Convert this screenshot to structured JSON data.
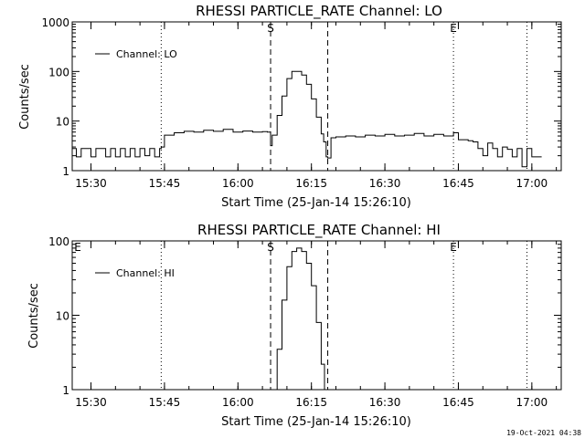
{
  "footer": {
    "timestamp": "19-Oct-2021 04:38"
  },
  "chart_data": [
    {
      "type": "line",
      "title": "RHESSI PARTICLE_RATE Channel: LO",
      "xlabel": "Start Time (25-Jan-14 15:26:10)",
      "ylabel": "Counts/sec",
      "yscale": "log",
      "ylim": [
        1,
        1000
      ],
      "xlim": [
        "15:26:10",
        "17:06:00"
      ],
      "xticks": [
        "15:30",
        "15:45",
        "16:00",
        "16:15",
        "16:30",
        "16:45",
        "17:00"
      ],
      "yticks": [
        "1",
        "10",
        "100",
        "1000"
      ],
      "legend": {
        "label": "Channel: LO",
        "placement": "top-left"
      },
      "markers": [
        {
          "label": "",
          "style": "dotted",
          "x": "15:44:20"
        },
        {
          "label": "S",
          "style": "dashed",
          "x": "16:06:40"
        },
        {
          "label": "",
          "style": "dashed",
          "x": "16:18:20"
        },
        {
          "label": "E",
          "style": "dotted",
          "x": "16:44:00"
        },
        {
          "label": "",
          "style": "dotted",
          "x": "16:59:00"
        }
      ],
      "grid": false,
      "color": "#000000",
      "series": [
        {
          "name": "Channel: LO",
          "x": [
            "15:26:10",
            "15:27:00",
            "15:28:00",
            "15:29:00",
            "15:30:00",
            "15:31:00",
            "15:32:00",
            "15:33:00",
            "15:34:00",
            "15:35:00",
            "15:36:00",
            "15:37:00",
            "15:38:00",
            "15:39:00",
            "15:40:00",
            "15:41:00",
            "15:42:00",
            "15:43:00",
            "15:44:00",
            "15:44:20",
            "15:45:00",
            "15:47:00",
            "15:49:00",
            "15:51:00",
            "15:53:00",
            "15:55:00",
            "15:57:00",
            "15:59:00",
            "16:01:00",
            "16:03:00",
            "16:05:00",
            "16:06:00",
            "16:06:40",
            "16:07:00",
            "16:08:00",
            "16:09:00",
            "16:10:00",
            "16:11:00",
            "16:12:00",
            "16:13:00",
            "16:14:00",
            "16:15:00",
            "16:16:00",
            "16:17:00",
            "16:17:30",
            "16:18:00",
            "16:18:20",
            "16:19:00",
            "16:20:00",
            "16:22:00",
            "16:24:00",
            "16:26:00",
            "16:28:00",
            "16:30:00",
            "16:32:00",
            "16:34:00",
            "16:36:00",
            "16:38:00",
            "16:40:00",
            "16:42:00",
            "16:44:00",
            "16:45:00",
            "16:47:00",
            "16:48:00",
            "16:49:00",
            "16:50:00",
            "16:51:00",
            "16:52:00",
            "16:53:00",
            "16:54:00",
            "16:55:00",
            "16:56:00",
            "16:57:00",
            "16:58:00",
            "16:59:00",
            "17:00:00",
            "17:01:00",
            "17:02:00"
          ],
          "y": [
            2.8,
            1.9,
            2.8,
            2.8,
            1.9,
            2.8,
            2.8,
            1.9,
            2.8,
            1.9,
            2.8,
            1.9,
            2.8,
            1.9,
            2.8,
            2.0,
            2.8,
            1.9,
            2.8,
            3.0,
            5.2,
            5.8,
            6.2,
            6.0,
            6.5,
            6.2,
            6.8,
            6.0,
            6.3,
            6.0,
            6.1,
            6.0,
            3.2,
            5.2,
            13,
            32,
            72,
            100,
            100,
            85,
            55,
            28,
            12,
            5.5,
            3.8,
            1.9,
            1.8,
            4.6,
            4.8,
            5.0,
            4.8,
            5.2,
            5.0,
            5.4,
            5.0,
            5.2,
            5.6,
            5.0,
            5.4,
            5.0,
            5.8,
            4.2,
            4.0,
            3.8,
            2.8,
            2.0,
            3.6,
            2.8,
            1.9,
            3.0,
            2.7,
            1.9,
            2.8,
            1.2,
            2.8,
            1.9,
            1.9,
            1.9
          ]
        }
      ]
    },
    {
      "type": "line",
      "title": "RHESSI PARTICLE_RATE Channel: HI",
      "xlabel": "Start Time (25-Jan-14 15:26:10)",
      "ylabel": "Counts/sec",
      "yscale": "log",
      "ylim": [
        1,
        100
      ],
      "xlim": [
        "15:26:10",
        "17:06:00"
      ],
      "xticks": [
        "15:30",
        "15:45",
        "16:00",
        "16:15",
        "16:30",
        "16:45",
        "17:00"
      ],
      "yticks": [
        "1",
        "10",
        "100"
      ],
      "legend": {
        "label": "Channel: HI",
        "placement": "top-left"
      },
      "markers": [
        {
          "label": "E",
          "style": "none",
          "x": "15:26:10"
        },
        {
          "label": "",
          "style": "dotted",
          "x": "15:44:20"
        },
        {
          "label": "S",
          "style": "dashed",
          "x": "16:06:40"
        },
        {
          "label": "",
          "style": "dashed",
          "x": "16:18:20"
        },
        {
          "label": "E",
          "style": "dotted",
          "x": "16:44:00"
        },
        {
          "label": "",
          "style": "dotted",
          "x": "16:59:00"
        }
      ],
      "grid": false,
      "color": "#000000",
      "series": [
        {
          "name": "Channel: HI",
          "x": [
            "16:07:30",
            "16:08:00",
            "16:09:00",
            "16:10:00",
            "16:11:00",
            "16:12:00",
            "16:13:00",
            "16:14:00",
            "16:15:00",
            "16:16:00",
            "16:17:00",
            "16:17:40"
          ],
          "y": [
            1.0,
            3.5,
            16,
            45,
            72,
            80,
            72,
            50,
            25,
            8,
            2.2,
            1.0
          ]
        }
      ]
    }
  ]
}
